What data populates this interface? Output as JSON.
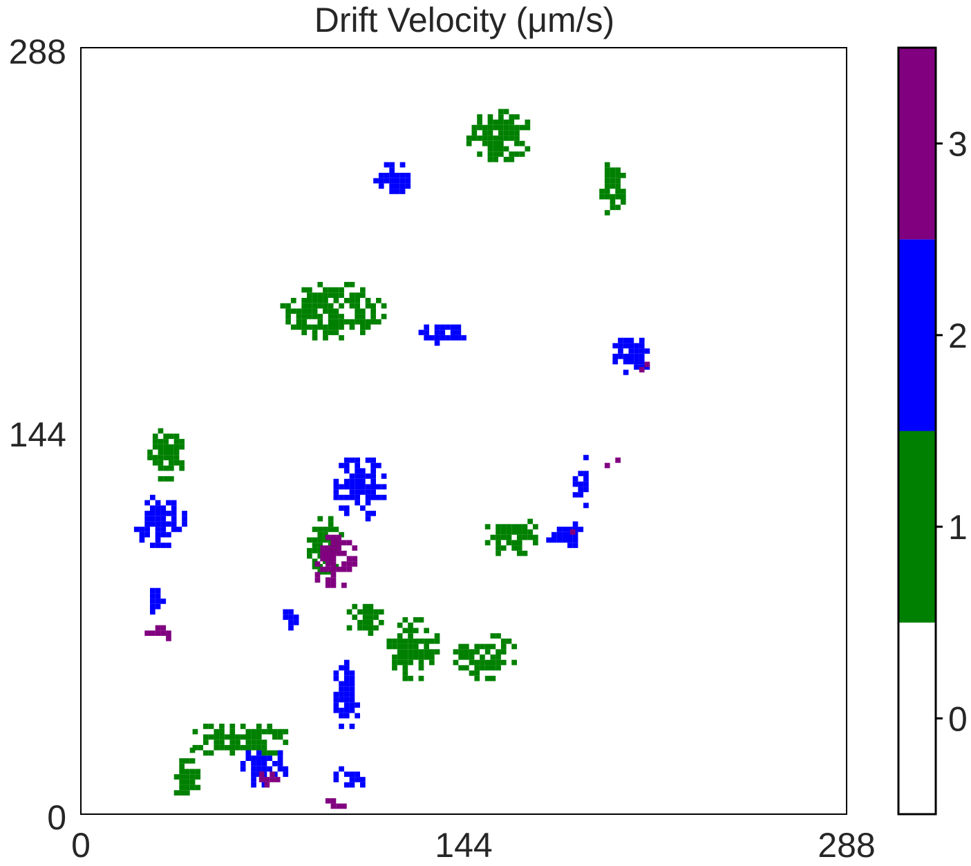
{
  "chart_data": {
    "type": "heatmap",
    "title": "Drift Velocity (μm/s)",
    "xlabel": "",
    "ylabel": "",
    "xlim": [
      0,
      288
    ],
    "ylim": [
      0,
      288
    ],
    "x_ticks": [
      "0",
      "144",
      "288"
    ],
    "y_ticks": [
      "0",
      "144",
      "288"
    ],
    "grid": false,
    "colorbar": {
      "levels": [
        {
          "value": 0,
          "label": "0",
          "color": "#ffffff"
        },
        {
          "value": 1,
          "label": "1",
          "color": "#008000"
        },
        {
          "value": 2,
          "label": "2",
          "color": "#0000ff"
        },
        {
          "value": 3,
          "label": "3",
          "color": "#800080"
        }
      ],
      "range": [
        -0.5,
        3.5
      ]
    },
    "regions": [
      {
        "value": 1,
        "x": [
          40,
          80
        ],
        "y": [
          20,
          35
        ]
      },
      {
        "value": 1,
        "x": [
          85,
          100
        ],
        "y": [
          90,
          112
        ]
      },
      {
        "value": 1,
        "x": [
          115,
          135
        ],
        "y": [
          50,
          75
        ]
      },
      {
        "value": 1,
        "x": [
          150,
          175
        ],
        "y": [
          97,
          112
        ]
      },
      {
        "value": 1,
        "x": [
          140,
          165
        ],
        "y": [
          50,
          68
        ]
      },
      {
        "value": 1,
        "x": [
          100,
          115
        ],
        "y": [
          65,
          80
        ]
      },
      {
        "value": 1,
        "x": [
          75,
          115
        ],
        "y": [
          178,
          200
        ]
      },
      {
        "value": 1,
        "x": [
          145,
          170
        ],
        "y": [
          245,
          265
        ]
      },
      {
        "value": 1,
        "x": [
          195,
          205
        ],
        "y": [
          225,
          245
        ]
      },
      {
        "value": 1,
        "x": [
          25,
          40
        ],
        "y": [
          125,
          145
        ]
      },
      {
        "value": 1,
        "x": [
          35,
          45
        ],
        "y": [
          3,
          25
        ]
      },
      {
        "value": 2,
        "x": [
          76,
          82
        ],
        "y": [
          65,
          80
        ]
      },
      {
        "value": 2,
        "x": [
          95,
          115
        ],
        "y": [
          110,
          135
        ]
      },
      {
        "value": 2,
        "x": [
          175,
          190
        ],
        "y": [
          100,
          110
        ]
      },
      {
        "value": 2,
        "x": [
          185,
          192
        ],
        "y": [
          115,
          135
        ]
      },
      {
        "value": 2,
        "x": [
          20,
          40
        ],
        "y": [
          100,
          120
        ]
      },
      {
        "value": 2,
        "x": [
          24,
          33
        ],
        "y": [
          75,
          85
        ]
      },
      {
        "value": 2,
        "x": [
          60,
          78
        ],
        "y": [
          10,
          25
        ]
      },
      {
        "value": 2,
        "x": [
          95,
          110
        ],
        "y": [
          10,
          18
        ]
      },
      {
        "value": 2,
        "x": [
          125,
          145
        ],
        "y": [
          176,
          185
        ]
      },
      {
        "value": 2,
        "x": [
          200,
          215
        ],
        "y": [
          165,
          180
        ]
      },
      {
        "value": 2,
        "x": [
          110,
          125
        ],
        "y": [
          233,
          245
        ]
      },
      {
        "value": 2,
        "x": [
          95,
          105
        ],
        "y": [
          30,
          60
        ]
      },
      {
        "value": 3,
        "x": [
          86,
          105
        ],
        "y": [
          85,
          105
        ]
      },
      {
        "value": 3,
        "x": [
          180,
          186
        ],
        "y": [
          105,
          110
        ]
      },
      {
        "value": 3,
        "x": [
          197,
          204
        ],
        "y": [
          130,
          135
        ]
      },
      {
        "value": 3,
        "x": [
          210,
          214
        ],
        "y": [
          166,
          170
        ]
      },
      {
        "value": 3,
        "x": [
          65,
          75
        ],
        "y": [
          10,
          17
        ]
      },
      {
        "value": 3,
        "x": [
          24,
          35
        ],
        "y": [
          65,
          72
        ]
      },
      {
        "value": 3,
        "x": [
          92,
          100
        ],
        "y": [
          2,
          6
        ]
      }
    ]
  }
}
